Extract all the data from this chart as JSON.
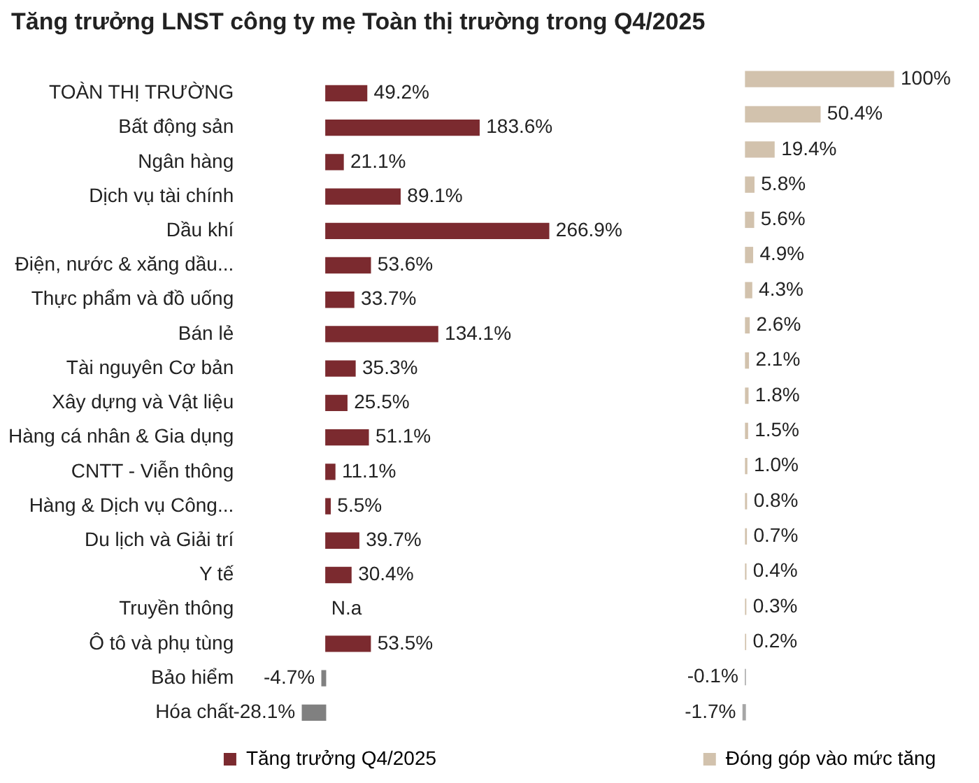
{
  "chart_data": [
    {
      "type": "bar",
      "title": "Tăng trưởng LNST công ty mẹ Toàn thị trường trong Q4/2025",
      "orientation": "horizontal",
      "categories": [
        "TOÀN THỊ TRƯỜNG",
        "Bất động sản",
        "Ngân hàng",
        "Dịch vụ tài chính",
        "Dầu khí",
        "Điện, nước & xăng dầu...",
        "Thực phẩm và đồ uống",
        "Bán lẻ",
        "Tài nguyên Cơ bản",
        "Xây dựng và Vật liệu",
        "Hàng cá nhân & Gia dụng",
        "CNTT - Viễn thông",
        "Hàng & Dịch vụ Công...",
        "Du lịch và Giải trí",
        "Y tế",
        "Truyền thông",
        "Ô tô và phụ tùng",
        "Bảo hiểm",
        "Hóa chất"
      ],
      "series": [
        {
          "name": "Tăng trưởng Q4/2025",
          "color": "#7b2a2f",
          "values": [
            49.2,
            183.6,
            21.1,
            89.1,
            266.9,
            53.6,
            33.7,
            134.1,
            35.3,
            25.5,
            51.1,
            11.1,
            5.5,
            39.7,
            30.4,
            null,
            53.5,
            -4.7,
            -28.1
          ],
          "colors": [
            "#7b2a2f",
            "#7b2a2f",
            "#7b2a2f",
            "#7b2a2f",
            "#7b2a2f",
            "#7b2a2f",
            "#7b2a2f",
            "#7b2a2f",
            "#7b2a2f",
            "#7b2a2f",
            "#7b2a2f",
            "#7b2a2f",
            "#7b2a2f",
            "#7b2a2f",
            "#7b2a2f",
            "#7b2a2f",
            "#7b2a2f",
            "#808080",
            "#808080"
          ],
          "value_labels": [
            "49.2%",
            "183.6%",
            "21.1%",
            "89.1%",
            "266.9%",
            "53.6%",
            "33.7%",
            "134.1%",
            "35.3%",
            "25.5%",
            "51.1%",
            "11.1%",
            "5.5%",
            "39.7%",
            "30.4%",
            "N.a",
            "53.5%",
            "-4.7%",
            "-28.1%"
          ]
        }
      ],
      "tick_labels": "y",
      "legend": "bottom"
    },
    {
      "type": "bar",
      "orientation": "horizontal",
      "categories": [
        null,
        null,
        null,
        null,
        null,
        null,
        null,
        null,
        null,
        null,
        null,
        null,
        null,
        null,
        null,
        null,
        null,
        null,
        null
      ],
      "series": [
        {
          "name": "Đóng góp vào mức tăng",
          "color": "#d2c2ad",
          "values": [
            100,
            50.4,
            19.4,
            5.8,
            5.6,
            4.9,
            4.3,
            2.6,
            2.1,
            1.8,
            1.5,
            1.0,
            0.8,
            0.7,
            0.4,
            0.3,
            0.2,
            -0.1,
            -1.7
          ],
          "colors": [
            "#d2c2ad",
            "#d2c2ad",
            "#d2c2ad",
            "#d2c2ad",
            "#d2c2ad",
            "#d2c2ad",
            "#d2c2ad",
            "#d2c2ad",
            "#d2c2ad",
            "#d2c2ad",
            "#d2c2ad",
            "#d2c2ad",
            "#d2c2ad",
            "#d2c2ad",
            "#d2c2ad",
            "#d2c2ad",
            "#d2c2ad",
            "#a6a6a6",
            "#a6a6a6"
          ],
          "value_labels": [
            "100%",
            "50.4%",
            "19.4%",
            "5.8%",
            "5.6%",
            "4.9%",
            "4.3%",
            "2.6%",
            "2.1%",
            "1.8%",
            "1.5%",
            "1.0%",
            "0.8%",
            "0.7%",
            "0.4%",
            "0.3%",
            "0.2%",
            "-0.1%",
            "-1.7%"
          ]
        }
      ],
      "tick_labels": false,
      "legend": "bottom"
    }
  ]
}
